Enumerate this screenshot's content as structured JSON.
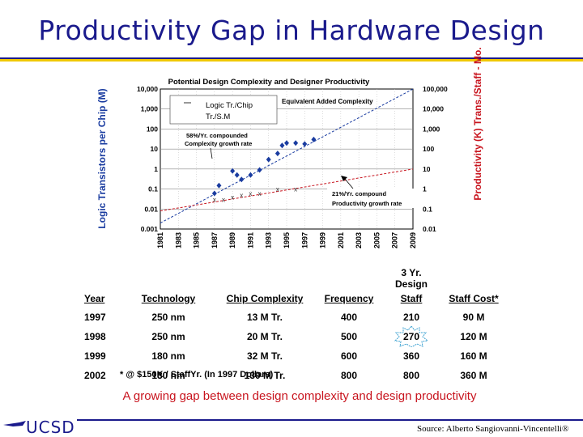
{
  "slide": {
    "title": "Productivity Gap in Hardware Design",
    "caption": "A growing gap between design complexity and design productivity",
    "footnote": "* @ $150K / StaffYr. (In 1997 Dollars)",
    "source": "Source: Alberto Sangiovanni-Vincentelli®",
    "logo_text": "UCSD",
    "title_color": "#1a1a8c",
    "accent_color": "#f0c800",
    "caption_color": "#c8141e"
  },
  "chart_data": {
    "type": "scatter",
    "title": "Potential Design Complexity and Designer Productivity",
    "ylabel": "Logic Transistors per Chip (M)",
    "y2label": "Productivity (K) Trans./Staff - Mo.",
    "x_ticks": [
      "1981",
      "1983",
      "1985",
      "1987",
      "1989",
      "1991",
      "1993",
      "1995",
      "1997",
      "1999",
      "2001",
      "2003",
      "2005",
      "2007",
      "2009"
    ],
    "y_ticks": [
      "10,000",
      "1,000",
      "100",
      "10",
      "1",
      "0.1",
      "0.01",
      "0.001"
    ],
    "y2_ticks": [
      "100,000",
      "10,000",
      "1,000",
      "100",
      "10",
      "1",
      "0.1",
      "0.01"
    ],
    "ylim": [
      0.001,
      10000
    ],
    "y2lim": [
      0.01,
      100000
    ],
    "xlim": [
      1981,
      2009
    ],
    "grid": true,
    "legend": {
      "items": [
        "Logic Tr./Chip",
        "Tr./S.M"
      ]
    },
    "annotations": {
      "equivalent": "Equivalent Added Complexity",
      "complexity_rate": [
        "58%/Yr. compounded",
        "Complexity growth rate"
      ],
      "productivity_rate": [
        "21%/Yr. compound",
        "Productivity growth rate"
      ]
    },
    "series": [
      {
        "name": "Logic Tr./Chip",
        "points": [
          [
            1987,
            0.06
          ],
          [
            1987.5,
            0.15
          ],
          [
            1989,
            0.8
          ],
          [
            1989.5,
            0.5
          ],
          [
            1990,
            0.3
          ],
          [
            1991,
            0.5
          ],
          [
            1992,
            0.9
          ],
          [
            1993,
            3
          ],
          [
            1994,
            6
          ],
          [
            1994.5,
            15
          ],
          [
            1995,
            20
          ],
          [
            1996,
            20
          ],
          [
            1997,
            18
          ],
          [
            1998,
            30
          ]
        ],
        "trend": [
          [
            1981,
            0.002
          ],
          [
            2009,
            10000
          ]
        ]
      },
      {
        "name": "Tr./S.M",
        "points": [
          [
            1987,
            0.03
          ],
          [
            1988,
            0.03
          ],
          [
            1989,
            0.04
          ],
          [
            1990,
            0.05
          ],
          [
            1991,
            0.06
          ],
          [
            1992,
            0.06
          ],
          [
            1994,
            0.1
          ],
          [
            1996,
            0.1
          ]
        ],
        "trend": [
          [
            1981,
            0.008
          ],
          [
            2009,
            1.0
          ]
        ]
      }
    ]
  },
  "table": {
    "super_header": "3 Yr. Design",
    "headers": [
      "Year",
      "Technology",
      "Chip Complexity",
      "Frequency",
      "Staff",
      "Staff Cost*"
    ],
    "rows": [
      [
        "1997",
        "250 nm",
        "13 M Tr.",
        "400",
        "210",
        "90 M"
      ],
      [
        "1998",
        "250 nm",
        "20 M Tr.",
        "500",
        "270",
        "120 M"
      ],
      [
        "1999",
        "180 nm",
        "32 M Tr.",
        "600",
        "360",
        "160 M"
      ],
      [
        "2002",
        "130 nm",
        "130 M Tr.",
        "800",
        "800",
        "360 M"
      ]
    ]
  }
}
